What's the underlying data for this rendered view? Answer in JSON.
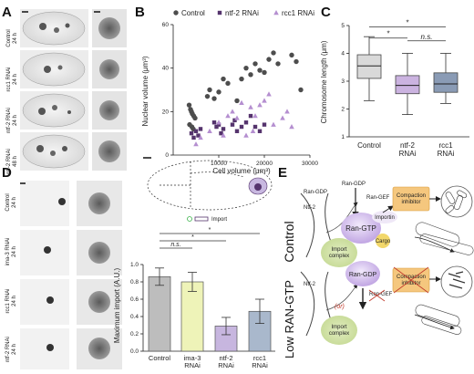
{
  "figure": {
    "panel_labels": [
      "A",
      "B",
      "C",
      "D",
      "E"
    ],
    "panel_a": {
      "row_labels": [
        [
          "Control",
          "24 h"
        ],
        [
          "rcc1 RNAi",
          "24 h"
        ],
        [
          "ntf-2 RNAi",
          "24 h"
        ],
        [
          "ntf-2 RNAi",
          "48 h"
        ]
      ]
    },
    "panel_d": {
      "row_labels": [
        [
          "Control",
          "24 h"
        ],
        [
          "ima-3 RNAi",
          "24 h"
        ],
        [
          "rcc1 RNAi",
          "24 h"
        ],
        [
          "ntf-2 RNAi",
          "24 h"
        ]
      ],
      "legend_label": "Import"
    },
    "panel_e": {
      "condition_top": "Control",
      "condition_bottom": "Low RAN-GTP",
      "labels": {
        "ran_gdp": "Ran-GDP",
        "ran_gef": "Ran-GEF",
        "ntf2": "Ntf-2",
        "importin": "Importin",
        "ran_gtp": "Ran-GTP",
        "cargo": "Cargo",
        "import_complex": "Import complex",
        "compaction_inhibitor": "Compaction inhibitor",
        "or": "(or)"
      }
    }
  },
  "chart_data": [
    {
      "panel": "B",
      "type": "scatter",
      "xlabel": "Cell volume (μm³)",
      "ylabel": "Nuclear volume (μm³)",
      "xlim": [
        0,
        30000
      ],
      "ylim": [
        0,
        60
      ],
      "xticks": [
        10000,
        20000,
        30000
      ],
      "yticks": [
        0,
        20,
        40,
        60
      ],
      "legend_placement": "top",
      "series": [
        {
          "name": "Control",
          "color": "#4d4d4d",
          "marker": "circle",
          "x": [
            3500,
            3800,
            4000,
            4200,
            4500,
            4800,
            3600,
            4100,
            4400,
            7500,
            8000,
            9000,
            10000,
            11000,
            12000,
            14000,
            15000,
            16000,
            17000,
            18000,
            19000,
            20000,
            21000,
            22000,
            23000,
            26000,
            27000,
            28000
          ],
          "y": [
            23,
            21,
            20,
            19,
            18,
            17,
            14,
            13,
            12,
            27,
            30,
            26,
            29,
            35,
            33,
            25,
            35,
            40,
            37,
            42,
            39,
            38,
            44,
            47,
            42,
            46,
            43,
            30
          ]
        },
        {
          "name": "ntf-2 RNAi",
          "color": "#55346d",
          "marker": "square",
          "x": [
            4000,
            4500,
            5000,
            5500,
            6000,
            9000,
            9500,
            10000,
            10500,
            11000,
            13000,
            13500,
            14000,
            15000,
            16000,
            17000,
            18000,
            19000,
            20000
          ],
          "y": [
            10,
            8,
            11,
            9,
            12,
            15,
            13,
            14,
            10,
            12,
            14,
            16,
            11,
            13,
            15,
            18,
            13,
            11,
            14
          ]
        },
        {
          "name": "rcc1 RNAi",
          "color": "#b58fd0",
          "marker": "triangle",
          "x": [
            5000,
            6000,
            8000,
            10000,
            11000,
            12000,
            13000,
            14000,
            15000,
            16000,
            17000,
            17500,
            18000,
            19000,
            20000,
            21000,
            22000,
            24000,
            25000,
            26000
          ],
          "y": [
            5,
            8,
            11,
            15,
            9,
            18,
            20,
            17,
            24,
            9,
            22,
            11,
            18,
            23,
            25,
            28,
            14,
            17,
            20,
            13
          ]
        }
      ]
    },
    {
      "panel": "C",
      "type": "box",
      "ylabel": "Chromosome length (μm)",
      "ylim": [
        1,
        5
      ],
      "yticks": [
        1,
        2,
        3,
        4,
        5
      ],
      "categories": [
        "Control",
        "ntf-2 RNAi",
        "rcc1 RNAi"
      ],
      "colors": [
        "#d9d9d9",
        "#cbb3e0",
        "#8a9bb5"
      ],
      "boxes": [
        {
          "min": 2.3,
          "q1": 3.1,
          "median": 3.55,
          "q3": 3.95,
          "max": 4.6
        },
        {
          "min": 1.8,
          "q1": 2.55,
          "median": 2.85,
          "q3": 3.2,
          "max": 4.0
        },
        {
          "min": 2.2,
          "q1": 2.6,
          "median": 2.9,
          "q3": 3.3,
          "max": 4.0
        }
      ],
      "annotations": [
        "*",
        "*",
        "n.s."
      ]
    },
    {
      "panel": "D",
      "type": "bar",
      "ylabel": "Maximum import (A.U.)",
      "ylim": [
        0,
        1.0
      ],
      "yticks": [
        0,
        0.2,
        0.4,
        0.6,
        0.8,
        1.0
      ],
      "categories": [
        "Control",
        "ima-3 RNAi",
        "ntf-2 RNAi",
        "rcc1 RNAi"
      ],
      "values": [
        0.86,
        0.8,
        0.29,
        0.46
      ],
      "errors": [
        0.1,
        0.11,
        0.1,
        0.14
      ],
      "colors": [
        "#bdbdbd",
        "#eef3b8",
        "#c7b6df",
        "#a9b8cc"
      ],
      "annotations": [
        "n.s.",
        "*",
        "*"
      ]
    }
  ]
}
